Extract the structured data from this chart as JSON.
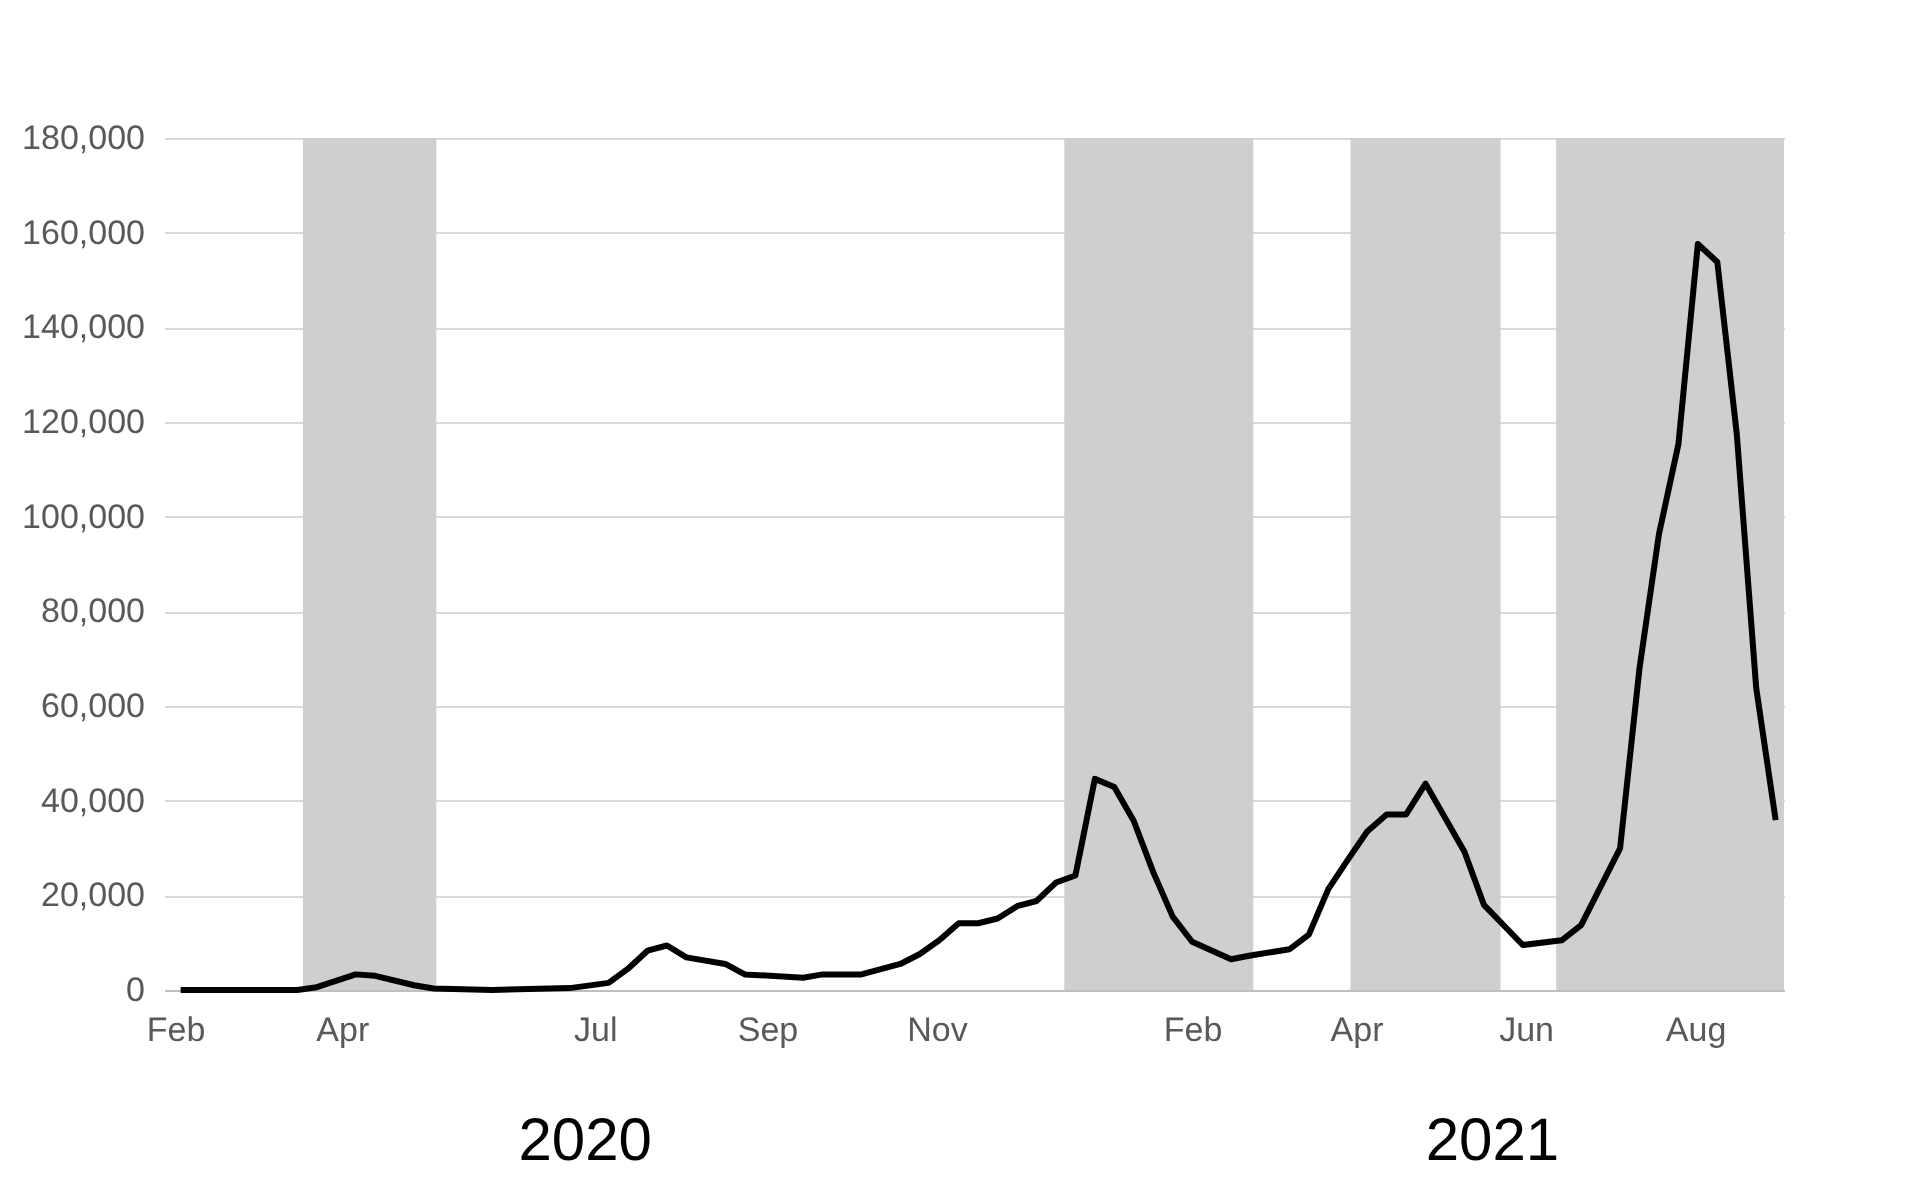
{
  "chart_data": {
    "type": "line",
    "x": [
      "2020-02-03",
      "2020-03-16",
      "2020-03-23",
      "2020-04-06",
      "2020-04-13",
      "2020-04-27",
      "2020-05-04",
      "2020-05-25",
      "2020-06-22",
      "2020-07-06",
      "2020-07-13",
      "2020-07-20",
      "2020-07-27",
      "2020-08-03",
      "2020-08-17",
      "2020-08-24",
      "2020-09-14",
      "2020-09-21",
      "2020-10-05",
      "2020-10-19",
      "2020-10-26",
      "2020-11-02",
      "2020-11-09",
      "2020-11-16",
      "2020-11-23",
      "2020-11-30",
      "2020-12-07",
      "2020-12-14",
      "2020-12-21",
      "2020-12-28",
      "2021-01-04",
      "2021-01-11",
      "2021-01-18",
      "2021-01-25",
      "2021-02-01",
      "2021-02-15",
      "2021-02-22",
      "2021-03-08",
      "2021-03-15",
      "2021-03-22",
      "2021-03-29",
      "2021-04-05",
      "2021-04-12",
      "2021-04-19",
      "2021-04-26",
      "2021-05-10",
      "2021-05-17",
      "2021-05-31",
      "2021-06-14",
      "2021-06-21",
      "2021-07-05",
      "2021-07-12",
      "2021-07-19",
      "2021-07-26",
      "2021-08-02",
      "2021-08-09",
      "2021-08-16",
      "2021-08-23",
      "2021-08-30"
    ],
    "series": [
      {
        "color": "#000000",
        "values": [
          0,
          0,
          600,
          3300,
          3000,
          1000,
          300,
          0,
          400,
          1500,
          4500,
          8300,
          9400,
          6900,
          5500,
          3300,
          2600,
          3300,
          3300,
          5500,
          7600,
          10500,
          14100,
          14100,
          15100,
          17700,
          18800,
          22700,
          24200,
          44600,
          42900,
          35700,
          24900,
          15500,
          10200,
          6500,
          7300,
          8600,
          11700,
          21300,
          27500,
          33500,
          37100,
          37100,
          43600,
          29200,
          18000,
          9500,
          10500,
          13700,
          29900,
          68000,
          96300,
          115300,
          157600,
          153800,
          117500,
          63800,
          35900
        ]
      }
    ],
    "xlim": [
      "2020-01-28",
      "2021-09-02"
    ],
    "xticks": [
      {
        "value": "2020-02-01",
        "label": "Feb"
      },
      {
        "value": "2020-04-01",
        "label": "Apr"
      },
      {
        "value": "2020-07-01",
        "label": "Jul"
      },
      {
        "value": "2020-09-01",
        "label": "Sep"
      },
      {
        "value": "2020-11-01",
        "label": "Nov"
      },
      {
        "value": "2021-02-01",
        "label": "Feb"
      },
      {
        "value": "2021-04-01",
        "label": "Apr"
      },
      {
        "value": "2021-06-01",
        "label": "Jun"
      },
      {
        "value": "2021-08-01",
        "label": "Aug"
      }
    ],
    "ylim": [
      0,
      180000
    ],
    "yticks": [
      {
        "value": 0,
        "label": "0"
      },
      {
        "value": 20000,
        "label": "20,000"
      },
      {
        "value": 40000,
        "label": "40,000"
      },
      {
        "value": 60000,
        "label": "60,000"
      },
      {
        "value": 80000,
        "label": "80,000"
      },
      {
        "value": 100000,
        "label": "100,000"
      },
      {
        "value": 120000,
        "label": "120,000"
      },
      {
        "value": 140000,
        "label": "140,000"
      },
      {
        "value": 160000,
        "label": "160,000"
      },
      {
        "value": 180000,
        "label": "180,000"
      }
    ],
    "bands": [
      {
        "axis": "x",
        "from": "2020-03-18",
        "to": "2020-05-05",
        "color": "#d0cece"
      },
      {
        "axis": "x",
        "from": "2020-12-17",
        "to": "2021-02-23",
        "color": "#d0cece"
      },
      {
        "axis": "x",
        "from": "2021-03-30",
        "to": "2021-05-23",
        "color": "#d0cece"
      },
      {
        "axis": "x",
        "from": "2021-06-12",
        "to": "2021-09-02",
        "color": "#d0cece"
      }
    ],
    "annotations": [
      "2020",
      "2021"
    ],
    "grid": "y",
    "legend": false,
    "marker": "none",
    "line_style": "solid"
  }
}
